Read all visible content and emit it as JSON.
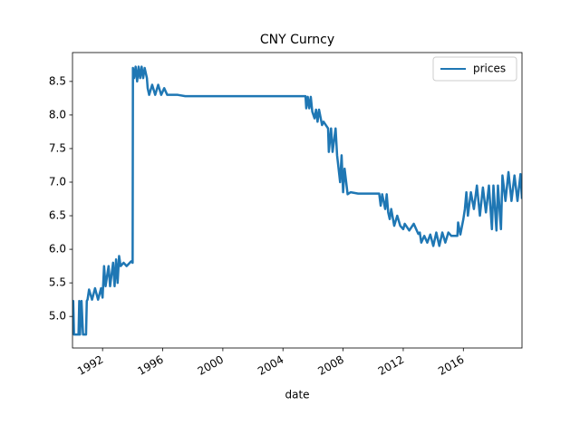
{
  "chart_data": {
    "type": "line",
    "title": "CNY Curncy",
    "xlabel": "date",
    "legend": "upper right",
    "xlim": [
      1990.0,
      2019.9
    ],
    "ylim": [
      4.53,
      8.93
    ],
    "xticks": [
      1992,
      1996,
      2000,
      2004,
      2008,
      2012,
      2016
    ],
    "yticks": [
      {
        "value": 5.0,
        "label": "5.0"
      },
      5.5,
      {
        "value": 6.0,
        "label": "6.0"
      },
      6.5,
      {
        "value": 7.0,
        "label": "7.0"
      },
      7.5,
      {
        "value": 8.0,
        "label": "8.0"
      },
      8.5
    ],
    "x": [
      1990.0,
      1990.05,
      1990.1,
      1990.4,
      1990.45,
      1990.5,
      1990.6,
      1990.7,
      1990.9,
      1990.95,
      1991.0,
      1991.1,
      1991.3,
      1991.5,
      1991.7,
      1991.9,
      1992.0,
      1992.1,
      1992.2,
      1992.4,
      1992.5,
      1992.7,
      1992.8,
      1992.9,
      1993.0,
      1993.1,
      1993.2,
      1993.4,
      1993.6,
      1993.9,
      1994.0,
      1994.02,
      1994.1,
      1994.2,
      1994.3,
      1994.4,
      1994.5,
      1994.6,
      1994.7,
      1994.8,
      1994.95,
      1995.0,
      1995.1,
      1995.3,
      1995.5,
      1995.7,
      1995.9,
      1996.1,
      1996.3,
      1997.0,
      1997.5,
      2005.5,
      2005.55,
      2005.65,
      2005.75,
      2005.85,
      2005.95,
      2006.1,
      2006.2,
      2006.3,
      2006.4,
      2006.6,
      2006.7,
      2007.0,
      2007.05,
      2007.2,
      2007.3,
      2007.5,
      2007.6,
      2007.8,
      2007.9,
      2008.0,
      2008.1,
      2008.3,
      2008.5,
      2009.0,
      2010.0,
      2010.4,
      2010.5,
      2010.6,
      2010.8,
      2010.9,
      2011.0,
      2011.1,
      2011.2,
      2011.4,
      2011.6,
      2011.8,
      2012.0,
      2012.1,
      2012.4,
      2012.7,
      2013.0,
      2013.1,
      2013.2,
      2013.4,
      2013.6,
      2013.8,
      2014.0,
      2014.2,
      2014.4,
      2014.6,
      2014.8,
      2015.0,
      2015.2,
      2015.6,
      2015.65,
      2015.8,
      2016.0,
      2016.1,
      2016.2,
      2016.3,
      2016.5,
      2016.7,
      2016.9,
      2017.1,
      2017.3,
      2017.5,
      2017.7,
      2017.9,
      2018.0,
      2018.2,
      2018.3,
      2018.5,
      2018.6,
      2018.8,
      2019.0,
      2019.2,
      2019.4,
      2019.6,
      2019.8,
      2019.9
    ],
    "series": [
      {
        "name": "prices",
        "color": "#1f77b4",
        "values": [
          4.73,
          5.23,
          4.73,
          4.73,
          5.23,
          4.73,
          5.23,
          4.73,
          4.73,
          5.23,
          5.25,
          5.4,
          5.25,
          5.42,
          5.25,
          5.42,
          5.28,
          5.75,
          5.45,
          5.75,
          5.45,
          5.8,
          5.45,
          5.85,
          5.5,
          5.9,
          5.75,
          5.8,
          5.75,
          5.82,
          5.8,
          8.7,
          8.55,
          8.72,
          8.5,
          8.72,
          8.55,
          8.72,
          8.55,
          8.7,
          8.55,
          8.4,
          8.3,
          8.45,
          8.3,
          8.45,
          8.3,
          8.4,
          8.3,
          8.3,
          8.28,
          8.28,
          8.1,
          8.27,
          8.1,
          8.27,
          8.05,
          7.95,
          8.08,
          7.9,
          8.08,
          7.85,
          7.9,
          7.8,
          7.45,
          7.8,
          7.45,
          7.8,
          7.4,
          7.0,
          7.4,
          6.85,
          7.2,
          6.82,
          6.85,
          6.83,
          6.83,
          6.83,
          6.65,
          6.82,
          6.6,
          6.82,
          6.55,
          6.45,
          6.6,
          6.35,
          6.5,
          6.35,
          6.3,
          6.38,
          6.28,
          6.38,
          6.23,
          6.25,
          6.1,
          6.2,
          6.1,
          6.22,
          6.05,
          6.25,
          6.05,
          6.25,
          6.1,
          6.25,
          6.2,
          6.2,
          6.4,
          6.22,
          6.45,
          6.6,
          6.85,
          6.5,
          6.85,
          6.6,
          6.95,
          6.5,
          6.92,
          6.55,
          6.95,
          6.3,
          6.95,
          6.28,
          6.95,
          6.3,
          7.1,
          6.72,
          7.15,
          6.72,
          7.1,
          6.72,
          7.12,
          6.75
        ]
      }
    ]
  }
}
